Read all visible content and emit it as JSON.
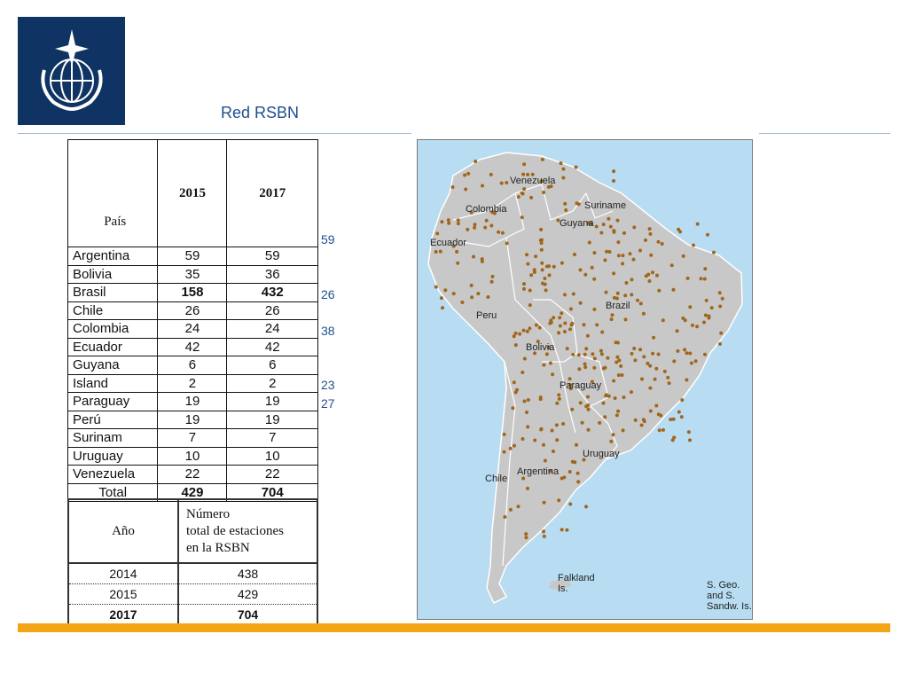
{
  "title": "Red RSBN",
  "table1": {
    "headers": [
      "País",
      "2015",
      "2017"
    ],
    "rows": [
      {
        "country": "Argentina",
        "y2015": "59",
        "y2017": "59",
        "bold": false
      },
      {
        "country": "Bolivia",
        "y2015": "35",
        "y2017": "36",
        "bold": false
      },
      {
        "country": "Brasil",
        "y2015": "158",
        "y2017": "432",
        "bold": true
      },
      {
        "country": "Chile",
        "y2015": "26",
        "y2017": "26",
        "bold": false
      },
      {
        "country": "Colombia",
        "y2015": "24",
        "y2017": "24",
        "bold": false
      },
      {
        "country": "Ecuador",
        "y2015": "42",
        "y2017": "42",
        "bold": false
      },
      {
        "country": "Guyana",
        "y2015": "6",
        "y2017": "6",
        "bold": false
      },
      {
        "country": "Island",
        "y2015": "2",
        "y2017": "2",
        "bold": false
      },
      {
        "country": "Paraguay",
        "y2015": "19",
        "y2017": "19",
        "bold": false
      },
      {
        "country": "Perú",
        "y2015": "19",
        "y2017": "19",
        "bold": false
      },
      {
        "country": "Surinam",
        "y2015": "7",
        "y2017": "7",
        "bold": false
      },
      {
        "country": "Uruguay",
        "y2015": "10",
        "y2017": "10",
        "bold": false
      },
      {
        "country": "Venezuela",
        "y2015": "22",
        "y2017": "22",
        "bold": false
      }
    ],
    "total": {
      "label": "Total",
      "y2015": "429",
      "y2017": "704"
    }
  },
  "side_values": [
    {
      "row": 0,
      "value": "59"
    },
    {
      "row": 3,
      "value": "26"
    },
    {
      "row": 5,
      "value": "38"
    },
    {
      "row": 8,
      "value": "23"
    },
    {
      "row": 9,
      "value": "27"
    }
  ],
  "table2": {
    "header_year": "Año",
    "header_number": [
      "Número",
      "total de estaciones",
      "en la RSBN"
    ],
    "rows": [
      {
        "year": "2014",
        "value": "438",
        "bold": false
      },
      {
        "year": "2015",
        "value": "429",
        "bold": false
      },
      {
        "year": "2017",
        "value": "704",
        "bold": true
      }
    ]
  },
  "map": {
    "labels": {
      "venezuela": "Venezuela",
      "colombia": "Colombia",
      "suriname": "Suriname",
      "guyana": "Guyana",
      "ecuador": "Ecuador",
      "peru": "Peru",
      "brazil": "Brazil",
      "bolivia": "Bolivia",
      "paraguay": "Paraguay",
      "uruguay": "Uruguay",
      "chile": "Chile",
      "argentina": "Argentina",
      "falkland": "Falkland\nIs.",
      "sgeo": "S. Geo.\nand S.\nSandw. Is."
    },
    "colors": {
      "sea": "#b8dcf2",
      "land": "#c8c8c8",
      "border": "#ffffff",
      "station": "#a0661c"
    }
  },
  "logo": {
    "icon": "wmo-emblem-icon",
    "background": "#0f3463"
  }
}
